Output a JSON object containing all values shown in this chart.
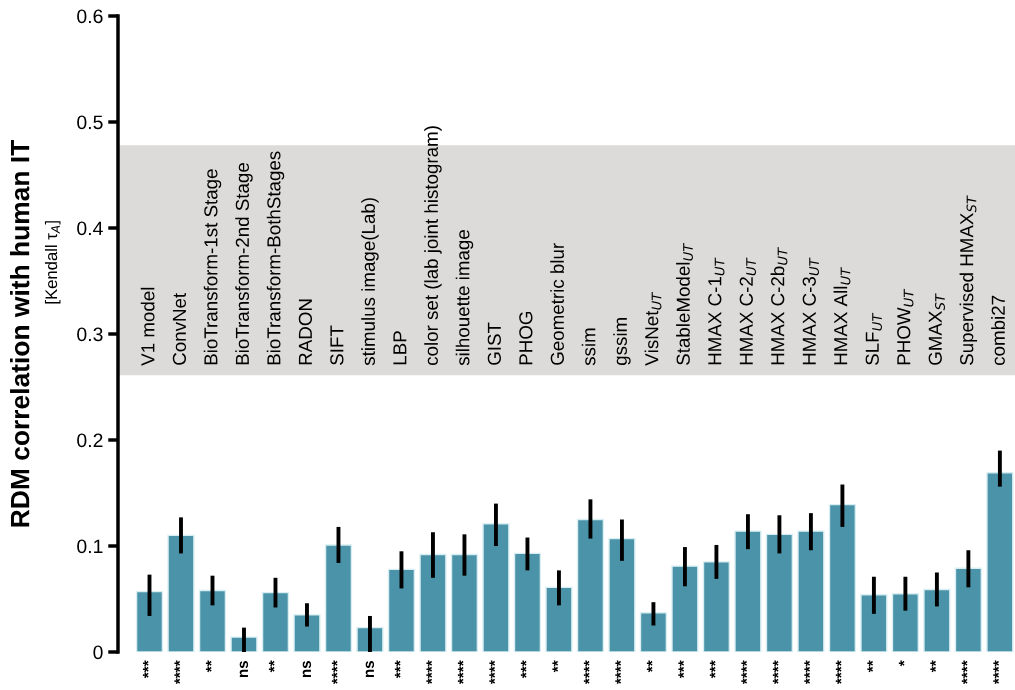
{
  "chart_data": {
    "type": "bar",
    "ylabel": "RDM correlation with human IT\n[Kendall τ$_{A}$]",
    "categories": [
      "V1 model",
      "ConvNet",
      "BioTransform-1st Stage",
      "BioTransform-2nd Stage",
      "BioTransform-BothStages",
      "RADON",
      "SIFT",
      "stimulus image(Lab)",
      "LBP",
      "color set (lab joint histogram)",
      "silhouette image",
      "GIST",
      "PHOG",
      "Geometric blur",
      "ssim",
      "gssim",
      "VisNet$_{UT}$",
      "StableModel$_{UT}$",
      "HMAX C-1$_{UT}$",
      "HMAX C-2$_{UT}$",
      "HMAX C-2b$_{UT}$",
      "HMAX C-3$_{UT}$",
      "HMAX All$_{UT}$",
      "SLF$_{UT}$",
      "PHOW$_{UT}$",
      "GMAX$_{ST}$",
      "Supervised HMAX$_{ST}$",
      "combi27"
    ],
    "values": [
      0.057,
      0.11,
      0.058,
      0.014,
      0.056,
      0.035,
      0.101,
      0.023,
      0.078,
      0.092,
      0.092,
      0.121,
      0.093,
      0.061,
      0.125,
      0.107,
      0.037,
      0.081,
      0.085,
      0.114,
      0.111,
      0.114,
      0.139,
      0.054,
      0.055,
      0.059,
      0.079,
      0.169
    ],
    "errors": [
      [
        0.034,
        0.073
      ],
      [
        0.093,
        0.127
      ],
      [
        0.044,
        0.072
      ],
      [
        0.0,
        0.023
      ],
      [
        0.042,
        0.07
      ],
      [
        0.024,
        0.046
      ],
      [
        0.084,
        0.118
      ],
      [
        0.0,
        0.034
      ],
      [
        0.06,
        0.095
      ],
      [
        0.07,
        0.113
      ],
      [
        0.072,
        0.111
      ],
      [
        0.1,
        0.14
      ],
      [
        0.077,
        0.108
      ],
      [
        0.044,
        0.077
      ],
      [
        0.107,
        0.144
      ],
      [
        0.086,
        0.125
      ],
      [
        0.025,
        0.047
      ],
      [
        0.062,
        0.099
      ],
      [
        0.069,
        0.101
      ],
      [
        0.097,
        0.13
      ],
      [
        0.093,
        0.129
      ],
      [
        0.096,
        0.131
      ],
      [
        0.118,
        0.158
      ],
      [
        0.036,
        0.071
      ],
      [
        0.039,
        0.071
      ],
      [
        0.043,
        0.075
      ],
      [
        0.061,
        0.096
      ],
      [
        0.156,
        0.19
      ]
    ],
    "color": "#4a93a8",
    "ylim": [
      0,
      0.6
    ],
    "yticks": [
      0,
      0.1,
      0.2,
      0.3,
      0.4,
      0.5,
      0.6
    ],
    "bands": [
      {
        "axis": "y",
        "from": 0.261,
        "to": 0.478,
        "color": "#dddbd9"
      }
    ],
    "annotations": [
      "***",
      "****",
      "**",
      "ns",
      "**",
      "ns",
      "****",
      "ns",
      "***",
      "****",
      "****",
      "****",
      "***",
      "**",
      "****",
      "****",
      "**",
      "***",
      "***",
      "****",
      "****",
      "****",
      "****",
      "**",
      "*",
      "**",
      "****",
      "****"
    ],
    "grid": false,
    "legend": false
  }
}
